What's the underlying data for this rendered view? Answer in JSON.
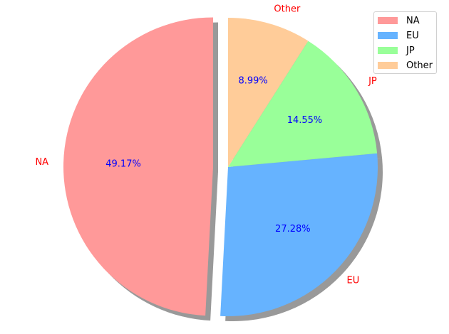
{
  "chart_data": {
    "type": "pie",
    "title": "",
    "slices": [
      {
        "label": "NA",
        "value": 49.17,
        "pct_label": "49.17%",
        "color": "#ff9999",
        "explode": 0.1
      },
      {
        "label": "EU",
        "value": 27.28,
        "pct_label": "27.28%",
        "color": "#66b3ff",
        "explode": 0
      },
      {
        "label": "JP",
        "value": 14.55,
        "pct_label": "14.55%",
        "color": "#99ff99",
        "explode": 0
      },
      {
        "label": "Other",
        "value": 8.99,
        "pct_label": "8.99%",
        "color": "#ffcc99",
        "explode": 0
      }
    ],
    "start_angle_deg": 90,
    "direction": "counterclockwise",
    "shadow": true,
    "label_color": "#ff0000",
    "pct_color": "#0000ff",
    "legend": {
      "placement": "top-right",
      "entries": [
        "NA",
        "EU",
        "JP",
        "Other"
      ]
    }
  }
}
